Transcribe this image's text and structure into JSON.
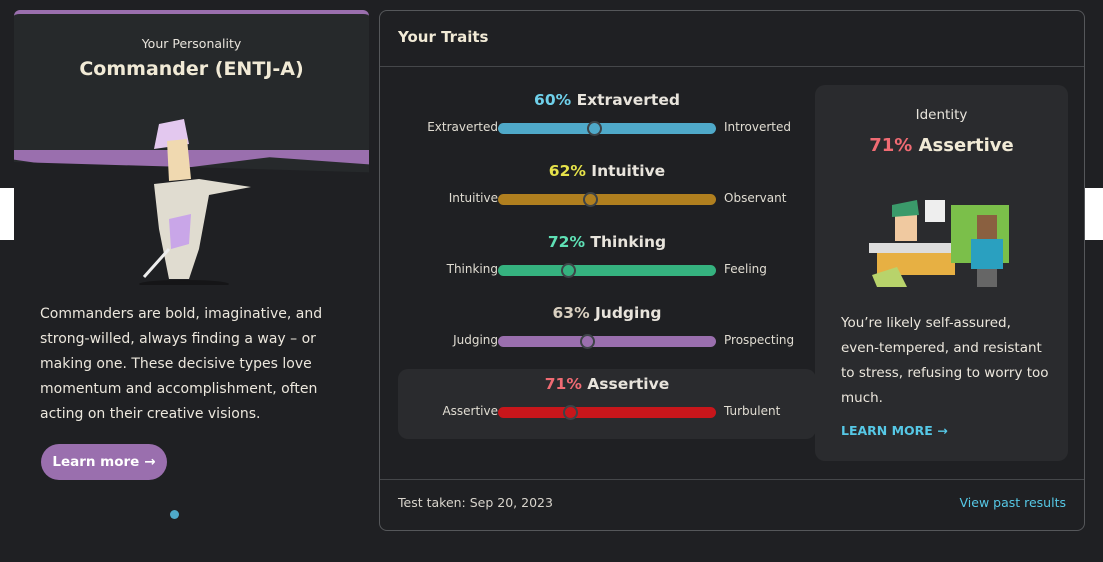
{
  "personality": {
    "subtitle": "Your Personality",
    "title": "Commander (ENTJ-A)",
    "description": "Commanders are bold, imaginative, and strong-willed, always finding a way – or making one. These decisive types love momentum and accomplishment, often acting on their creative visions.",
    "learn_more": "Learn more",
    "arrow": "→",
    "accent": "#9a6fae"
  },
  "traits": {
    "title": "Your Traits",
    "items": [
      {
        "pct": "60%",
        "name": "Extraverted",
        "left": "Extraverted",
        "right": "Introverted",
        "value": 60,
        "color": "#4fa9c9",
        "pct_color": "#6fd0ea"
      },
      {
        "pct": "62%",
        "name": "Intuitive",
        "left": "Intuitive",
        "right": "Observant",
        "value": 62,
        "color": "#b07f1f",
        "pct_color": "#e6e24a"
      },
      {
        "pct": "72%",
        "name": "Thinking",
        "left": "Thinking",
        "right": "Feeling",
        "value": 72,
        "color": "#35b27f",
        "pct_color": "#5fe0b5"
      },
      {
        "pct": "63%",
        "name": "Judging",
        "left": "Judging",
        "right": "Prospecting",
        "value": 63,
        "color": "#9a6fae",
        "pct_color": "#d9d0c0"
      },
      {
        "pct": "71%",
        "name": "Assertive",
        "left": "Assertive",
        "right": "Turbulent",
        "value": 71,
        "color": "#c8161b",
        "pct_color": "#f06b73"
      }
    ]
  },
  "identity": {
    "label": "Identity",
    "pct": "71%",
    "name": "Assertive",
    "description": "You’re likely self-assured, even-tempered, and resistant to stress, refusing to worry too much.",
    "learn_more": "LEARN MORE",
    "arrow": "→"
  },
  "footer": {
    "test_taken": "Test taken: Sep 20, 2023",
    "view_past": "View past results"
  }
}
